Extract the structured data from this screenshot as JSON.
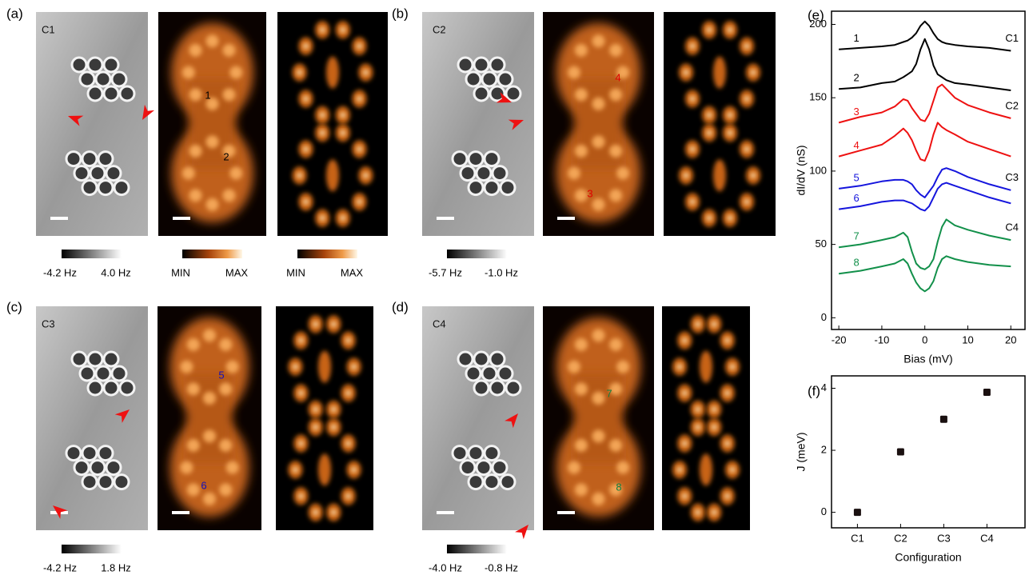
{
  "figure": {
    "panel_labels": [
      "(a)",
      "(b)",
      "(c)",
      "(d)",
      "(e)",
      "(f)"
    ],
    "configs": [
      "C1",
      "C2",
      "C3",
      "C4"
    ],
    "sites": [
      {
        "label": "1",
        "color": "#000000"
      },
      {
        "label": "2",
        "color": "#000000"
      },
      {
        "label": "3",
        "color": "#e00000"
      },
      {
        "label": "4",
        "color": "#e00000"
      },
      {
        "label": "5",
        "color": "#1010c0"
      },
      {
        "label": "6",
        "color": "#1010c0"
      },
      {
        "label": "7",
        "color": "#108040"
      },
      {
        "label": "8",
        "color": "#108040"
      }
    ],
    "colorbars": [
      {
        "min": "-4.2 Hz",
        "max": "4.0 Hz"
      },
      {
        "min": "MIN",
        "max": "MAX"
      },
      {
        "min": "MIN",
        "max": "MAX"
      },
      {
        "min": "-5.7 Hz",
        "max": "-1.0 Hz"
      },
      {
        "min": "-4.2 Hz",
        "max": "1.8 Hz"
      },
      {
        "min": "-4.0 Hz",
        "max": "-0.8 Hz"
      }
    ]
  },
  "chart_data": [
    {
      "type": "line",
      "xlabel": "Bias (mV)",
      "ylabel": "dI/dV (nS)",
      "xlim": [
        -21.7,
        23.3
      ],
      "ylim": [
        -8,
        209
      ],
      "xticks": [
        -20,
        -10,
        0,
        10,
        20
      ],
      "yticks": [
        0,
        50,
        100,
        150,
        200
      ],
      "annotations": [
        "C1",
        "C2",
        "C3",
        "C4"
      ],
      "x": [
        -20,
        -15,
        -10,
        -7,
        -5,
        -4,
        -3,
        -2,
        -1,
        0,
        1,
        2,
        3,
        4,
        5,
        7,
        10,
        15,
        20
      ],
      "series": [
        {
          "name": "1",
          "color": "#000000",
          "values": [
            183,
            184,
            185,
            186,
            188,
            189,
            191,
            194,
            199,
            202,
            199,
            194,
            190,
            188,
            187,
            186,
            185,
            184,
            182
          ]
        },
        {
          "name": "2",
          "color": "#000000",
          "values": [
            156,
            157,
            160,
            161,
            164,
            166,
            168,
            173,
            183,
            190,
            183,
            172,
            166,
            164,
            162,
            160,
            159,
            157,
            155
          ]
        },
        {
          "name": "3",
          "color": "#ee1111",
          "values": [
            133,
            137,
            140,
            144,
            149,
            148,
            143,
            139,
            135,
            134,
            139,
            148,
            157,
            159,
            156,
            150,
            145,
            140,
            136
          ]
        },
        {
          "name": "4",
          "color": "#ee1111",
          "values": [
            110,
            114,
            118,
            124,
            129,
            126,
            121,
            114,
            108,
            107,
            114,
            125,
            133,
            130,
            128,
            125,
            120,
            115,
            110
          ]
        },
        {
          "name": "5",
          "color": "#1515dd",
          "values": [
            88,
            90,
            93,
            94,
            94,
            93,
            91,
            87,
            84,
            82,
            86,
            90,
            96,
            101,
            102,
            100,
            96,
            91,
            87
          ]
        },
        {
          "name": "6",
          "color": "#1515dd",
          "values": [
            74,
            76,
            79,
            80,
            80,
            79,
            78,
            76,
            74,
            73,
            76,
            82,
            88,
            91,
            92,
            90,
            87,
            82,
            78
          ]
        },
        {
          "name": "7",
          "color": "#12904a",
          "values": [
            48,
            50,
            53,
            55,
            58,
            55,
            45,
            37,
            34,
            33,
            35,
            40,
            52,
            62,
            67,
            63,
            60,
            56,
            53
          ]
        },
        {
          "name": "8",
          "color": "#12904a",
          "values": [
            30,
            32,
            35,
            37,
            40,
            37,
            30,
            24,
            20,
            18,
            20,
            25,
            34,
            40,
            42,
            40,
            38,
            36,
            35
          ]
        }
      ]
    },
    {
      "type": "scatter",
      "xlabel": "Configuration",
      "ylabel": "J (meV)",
      "categories": [
        "C1",
        "C2",
        "C3",
        "C4"
      ],
      "values": [
        0,
        1.95,
        3.0,
        3.87
      ],
      "color": "#1a1010",
      "ylim": [
        -0.5,
        4.4
      ],
      "yticks": [
        0,
        2,
        4
      ]
    }
  ]
}
